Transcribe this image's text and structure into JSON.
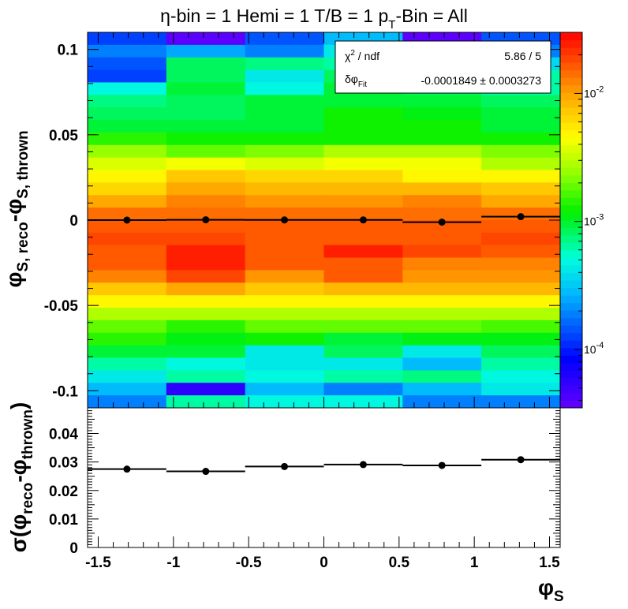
{
  "title": {
    "prefix": "η-bin = 1 Hemi = 1 T/B = 1 p",
    "sub": "T",
    "suffix": "-Bin = All"
  },
  "stats_box": {
    "chi2_label": "χ",
    "chi2_exp": "2",
    "chi2_rest": " / ndf",
    "chi2_value": "5.86 / 5",
    "dphi_label": "δφ",
    "dphi_sub": "Fit",
    "dphi_value": "-0.0001849 ± 0.0003273"
  },
  "colors": {
    "frame": "#000000",
    "profile": "#000000",
    "marker": "#000000"
  },
  "chart_data": [
    {
      "type": "heatmap",
      "title": "η-bin = 1 Hemi = 1 T/B = 1 pT-Bin = All",
      "xlabel": "φS",
      "ylabel": {
        "main": "φ",
        "sub1": "S, reco",
        "mid": "-φ",
        "sub2": "S, thrown"
      },
      "xlim": [
        -1.5708,
        1.5708
      ],
      "ylim": [
        -0.11,
        0.11
      ],
      "x_ticks": [
        -1.5,
        -1,
        -0.5,
        0,
        0.5,
        1,
        1.5
      ],
      "y_ticks": [
        -0.1,
        -0.05,
        0,
        0.05,
        0.1
      ],
      "y_tick_labels": [
        "-0.1",
        "-0.05",
        "0",
        "0.05",
        "0.1"
      ],
      "zlim": [
        3.5e-05,
        0.03
      ],
      "z_scale": "log",
      "z_tick_labels": [
        {
          "base": "10",
          "exp": "-4",
          "value": 0.0001
        },
        {
          "base": "10",
          "exp": "-3",
          "value": 0.001
        },
        {
          "base": "10",
          "exp": "-2",
          "value": 0.01
        }
      ],
      "x_bins": 6,
      "y_bins": 30,
      "z_values_top_to_bottom": [
        [
          0.00012,
          4e-05,
          0.00015,
          0.0003,
          3e-05,
          0.00015
        ],
        [
          0.00018,
          0.00025,
          0.00018,
          0.0004,
          0.0004,
          0.00018
        ],
        [
          0.00015,
          0.0008,
          0.0007,
          0.0006,
          0.0005,
          0.00035
        ],
        [
          0.00012,
          0.0008,
          0.0004,
          0.0008,
          0.0007,
          0.0006
        ],
        [
          0.0005,
          0.0009,
          0.0005,
          0.0009,
          0.0008,
          0.0006
        ],
        [
          0.0007,
          0.0008,
          0.0009,
          0.001,
          0.0009,
          0.0008
        ],
        [
          0.0008,
          0.0008,
          0.001,
          0.0012,
          0.0011,
          0.0009
        ],
        [
          0.001,
          0.0009,
          0.0009,
          0.0012,
          0.0012,
          0.001
        ],
        [
          0.0014,
          0.0012,
          0.0013,
          0.0013,
          0.0013,
          0.0012
        ],
        [
          0.0025,
          0.002,
          0.0022,
          0.003,
          0.003,
          0.0022
        ],
        [
          0.0035,
          0.004,
          0.0035,
          0.004,
          0.004,
          0.003
        ],
        [
          0.005,
          0.007,
          0.006,
          0.006,
          0.005,
          0.005
        ],
        [
          0.006,
          0.01,
          0.008,
          0.008,
          0.008,
          0.007
        ],
        [
          0.01,
          0.012,
          0.011,
          0.011,
          0.012,
          0.01
        ],
        [
          0.015,
          0.015,
          0.015,
          0.015,
          0.015,
          0.015
        ],
        [
          0.016,
          0.016,
          0.016,
          0.016,
          0.016,
          0.017
        ],
        [
          0.018,
          0.02,
          0.017,
          0.017,
          0.017,
          0.018
        ],
        [
          0.017,
          0.023,
          0.017,
          0.023,
          0.018,
          0.017
        ],
        [
          0.016,
          0.023,
          0.016,
          0.017,
          0.012,
          0.012
        ],
        [
          0.012,
          0.02,
          0.011,
          0.016,
          0.011,
          0.011
        ],
        [
          0.007,
          0.01,
          0.007,
          0.008,
          0.008,
          0.008
        ],
        [
          0.005,
          0.005,
          0.005,
          0.005,
          0.005,
          0.005
        ],
        [
          0.003,
          0.003,
          0.003,
          0.003,
          0.003,
          0.003
        ],
        [
          0.002,
          0.0015,
          0.002,
          0.002,
          0.002,
          0.0016
        ],
        [
          0.0015,
          0.0011,
          0.0012,
          0.001,
          0.0011,
          0.0011
        ],
        [
          0.0009,
          0.0009,
          0.0004,
          0.0008,
          0.0004,
          0.0008
        ],
        [
          0.0006,
          0.0005,
          0.0004,
          0.0004,
          0.0003,
          0.0006
        ],
        [
          0.0004,
          0.0006,
          0.0005,
          0.0006,
          0.0007,
          0.0005
        ],
        [
          0.0003,
          6e-05,
          0.0003,
          0.0002,
          0.0003,
          0.0004
        ],
        [
          0.0002,
          0.0006,
          0.0005,
          0.0005,
          0.0002,
          0.0002
        ]
      ],
      "profile": {
        "x": [
          -1.309,
          -0.785,
          -0.262,
          0.262,
          0.785,
          1.309
        ],
        "y": [
          0.0,
          0.0002,
          0.0001,
          0.0001,
          -0.0012,
          0.002
        ],
        "xerr": 0.2618
      }
    },
    {
      "type": "scatter",
      "xlabel": "φS",
      "ylabel": {
        "main": "σ(φ",
        "sub1": "reco",
        "mid": "-φ",
        "sub2": "thrown",
        "end": ")"
      },
      "xlim": [
        -1.5708,
        1.5708
      ],
      "ylim": [
        0,
        0.049
      ],
      "x_ticks": [
        -1.5,
        -1,
        -0.5,
        0,
        0.5,
        1,
        1.5
      ],
      "x_tick_labels": [
        "-1.5",
        "-1",
        "-0.5",
        "0",
        "0.5",
        "1",
        "1.5"
      ],
      "y_ticks": [
        0,
        0.01,
        0.02,
        0.03,
        0.04
      ],
      "y_tick_labels": [
        "0",
        "0.01",
        "0.02",
        "0.03",
        "0.04"
      ],
      "x": [
        -1.309,
        -0.785,
        -0.262,
        0.262,
        0.785,
        1.309
      ],
      "y": [
        0.0275,
        0.0267,
        0.0284,
        0.0291,
        0.0288,
        0.0308
      ],
      "xerr": 0.2618
    }
  ]
}
